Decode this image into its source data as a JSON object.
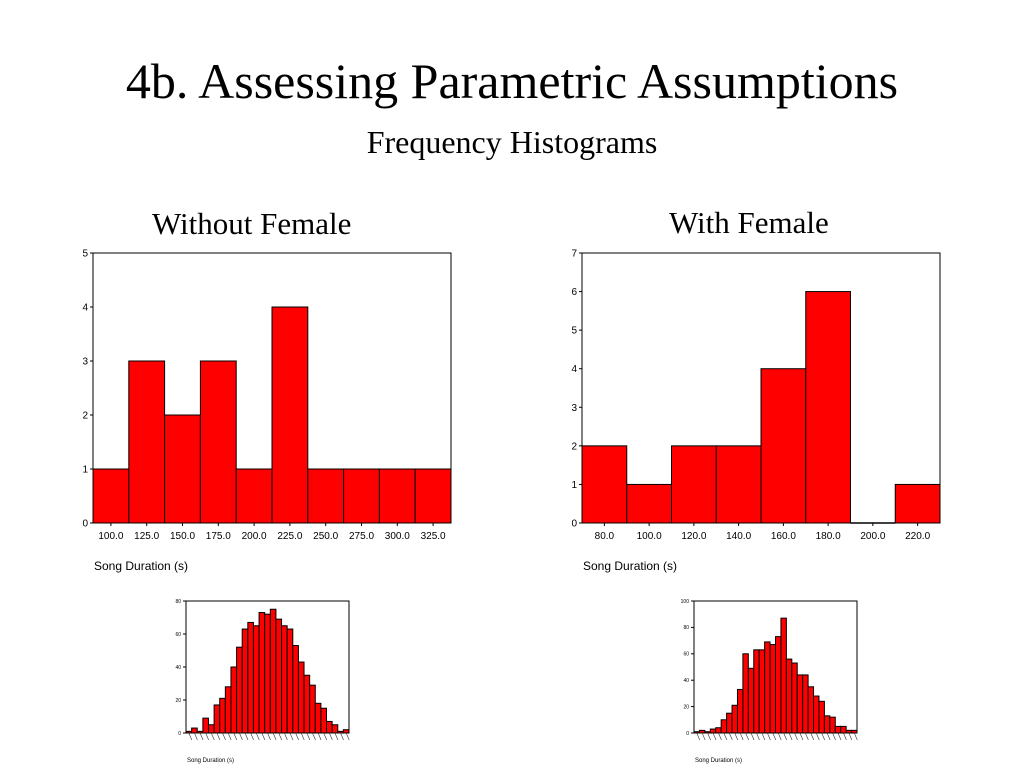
{
  "slide": {
    "title": "4b. Assessing Parametric Assumptions",
    "subtitle": "Frequency Histograms"
  },
  "colors": {
    "bar_fill": "#ff0000",
    "bar_stroke": "#000000"
  },
  "chart_data": [
    {
      "type": "bar",
      "title": "Without Female",
      "xlabel": "Song Duration (s)",
      "ylabel": "",
      "categories": [
        "100.0",
        "125.0",
        "150.0",
        "175.0",
        "200.0",
        "225.0",
        "250.0",
        "275.0",
        "300.0",
        "325.0"
      ],
      "values": [
        1,
        3,
        2,
        3,
        1,
        4,
        1,
        1,
        1,
        1
      ],
      "ylim": [
        0,
        5
      ],
      "yticks": [
        "0",
        "1",
        "2",
        "3",
        "4",
        "5"
      ],
      "grid": false
    },
    {
      "type": "bar",
      "title": "With Female",
      "xlabel": "Song Duration (s)",
      "ylabel": "",
      "categories": [
        "80.0",
        "100.0",
        "120.0",
        "140.0",
        "160.0",
        "180.0",
        "200.0",
        "220.0"
      ],
      "values": [
        2,
        1,
        2,
        2,
        4,
        6,
        0,
        1
      ],
      "ylim": [
        0,
        7
      ],
      "yticks": [
        "0",
        "1",
        "2",
        "3",
        "4",
        "5",
        "6",
        "7"
      ],
      "grid": false
    },
    {
      "type": "bar",
      "title": "",
      "xlabel": "Song Duration (s)",
      "ylabel": "",
      "values": [
        1,
        3,
        1,
        9,
        5,
        17,
        21,
        28,
        40,
        52,
        63,
        67,
        65,
        73,
        72,
        75,
        69,
        65,
        63,
        53,
        43,
        35,
        29,
        18,
        15,
        7,
        5,
        1,
        2
      ],
      "ylim": [
        0,
        80
      ],
      "yticks": [
        "0",
        "20",
        "40",
        "60",
        "80"
      ],
      "grid": false
    },
    {
      "type": "bar",
      "title": "",
      "xlabel": "Song Duration (s)",
      "ylabel": "",
      "values": [
        1,
        2,
        1,
        3,
        4,
        10,
        15,
        21,
        33,
        60,
        49,
        63,
        63,
        69,
        67,
        73,
        87,
        56,
        53,
        44,
        44,
        35,
        28,
        24,
        13,
        12,
        5,
        5,
        2,
        2
      ],
      "ylim": [
        0,
        100
      ],
      "yticks": [
        "0",
        "20",
        "40",
        "60",
        "80",
        "100"
      ],
      "grid": false
    }
  ]
}
